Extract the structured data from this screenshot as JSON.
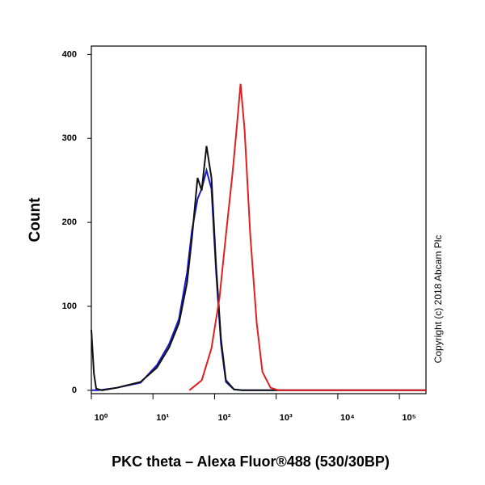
{
  "chart_data": {
    "type": "line",
    "x_label": "PKC theta – Alexa Fluor®488 (530/30BP)",
    "y_label": "Count",
    "annotation": "Copyright (c) 2018 Abcam Plc",
    "xscale": "log",
    "xlim": [
      1,
      270000
    ],
    "ylim": [
      -4,
      410
    ],
    "xticks": [
      {
        "value": 1,
        "label": "10⁰"
      },
      {
        "value": 10,
        "label": "10¹"
      },
      {
        "value": 100,
        "label": "10²"
      },
      {
        "value": 1000,
        "label": "10³"
      },
      {
        "value": 10000,
        "label": "10⁴"
      },
      {
        "value": 100000,
        "label": "10⁵"
      }
    ],
    "yticks": [
      0,
      100,
      200,
      300,
      400
    ],
    "series": [
      {
        "color": "#1a1acc",
        "x": [
          1,
          1.1,
          1.3,
          2.6,
          6.3,
          11.6,
          18.3,
          26.4,
          35.7,
          42.8,
          53,
          61.8,
          74,
          89,
          106,
          127,
          153,
          207,
          280,
          270000
        ],
        "values": [
          0,
          0,
          0,
          3,
          9,
          30,
          55,
          85,
          140,
          190,
          228,
          240,
          262,
          240,
          140,
          55,
          10,
          1,
          0,
          0
        ]
      },
      {
        "color": "#111111",
        "x": [
          1,
          1.1,
          1.2,
          1.5,
          2.6,
          6.3,
          11.6,
          18.3,
          26.4,
          35.7,
          42.8,
          53,
          61.8,
          74,
          89,
          106,
          127,
          153,
          207,
          280,
          270000
        ],
        "values": [
          72,
          20,
          2,
          0,
          3,
          10,
          27,
          51,
          80,
          128,
          181,
          253,
          238,
          291,
          253,
          147,
          61,
          12,
          1,
          0,
          0
        ]
      },
      {
        "color": "#e02020",
        "x": [
          39,
          62,
          89,
          120,
          153,
          195,
          227,
          264,
          307,
          379,
          483,
          597,
          809,
          1095,
          270000
        ],
        "values": [
          0,
          12,
          50,
          110,
          185,
          258,
          310,
          365,
          310,
          185,
          80,
          22,
          3,
          0,
          0
        ]
      }
    ]
  }
}
